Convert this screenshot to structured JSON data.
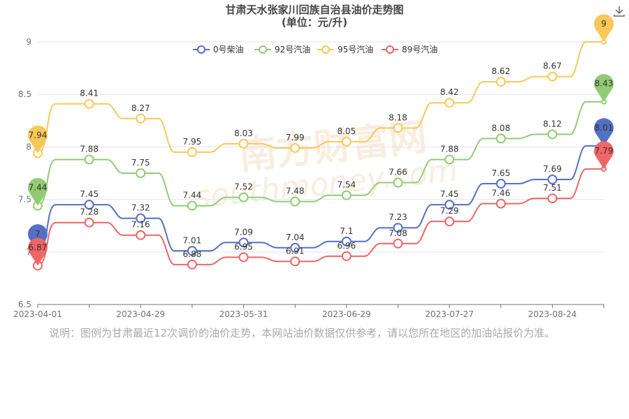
{
  "chart_data": {
    "type": "line",
    "title": "甘肃天水张家川回族自治县油价走势图",
    "subtitle": "(单位：元/升)",
    "x": [
      "2023-04-01",
      "2023-04-15",
      "2023-04-29",
      "2023-05-13",
      "2023-05-31",
      "2023-06-14",
      "2023-06-29",
      "2023-07-13",
      "2023-07-27",
      "2023-08-10",
      "2023-08-24",
      "2023-09-07"
    ],
    "x_tick_labels": [
      "2023-04-01",
      "2023-04-29",
      "2023-05-31",
      "2023-06-29",
      "2023-07-27",
      "2023-08-24"
    ],
    "y_ticks": [
      "6.5",
      "7",
      "7.5",
      "8",
      "8.5",
      "9"
    ],
    "ylim": [
      6.5,
      9
    ],
    "grid": true,
    "legend_position": "top",
    "series": [
      {
        "name": "0号柴油",
        "color": "#5470c6",
        "values": [
          7,
          7.45,
          7.32,
          7.01,
          7.09,
          7.04,
          7.1,
          7.23,
          7.45,
          7.65,
          7.69,
          8.01
        ],
        "labels": [
          "7",
          "7.45",
          "7.32",
          "7.01",
          "7.09",
          "7.04",
          "7.1",
          "7.23",
          "7.45",
          "7.65",
          "7.69",
          "8.01"
        ]
      },
      {
        "name": "92号汽油",
        "color": "#91cc75",
        "values": [
          7.44,
          7.88,
          7.75,
          7.44,
          7.52,
          7.48,
          7.54,
          7.66,
          7.88,
          8.08,
          8.12,
          8.43
        ],
        "labels": [
          "7.44",
          "7.88",
          "7.75",
          "7.44",
          "7.52",
          "7.48",
          "7.54",
          "7.66",
          "7.88",
          "8.08",
          "8.12",
          "8.43"
        ]
      },
      {
        "name": "95号汽油",
        "color": "#fac858",
        "values": [
          7.94,
          8.41,
          8.27,
          7.95,
          8.03,
          7.99,
          8.05,
          8.18,
          8.42,
          8.62,
          8.67,
          9
        ],
        "labels": [
          "7.94",
          "8.41",
          "8.27",
          "7.95",
          "8.03",
          "7.99",
          "8.05",
          "8.18",
          "8.42",
          "8.62",
          "8.67",
          "9"
        ]
      },
      {
        "name": "89号汽油",
        "color": "#ee6666",
        "values": [
          6.87,
          7.28,
          7.16,
          6.88,
          6.95,
          6.91,
          6.96,
          7.08,
          7.29,
          7.46,
          7.51,
          7.79
        ],
        "labels": [
          "6.87",
          "7.28",
          "7.16",
          "6.88",
          "6.95",
          "6.91",
          "6.96",
          "7.08",
          "7.29",
          "7.46",
          "7.51",
          "7.79"
        ]
      }
    ]
  },
  "note": "说明：图例为甘肃最近12次调价的油价走势，本网站油价数据仅供参考，请以您所在地区的加油站报价为准。",
  "watermark": {
    "line1": "南方财富网",
    "line2": "southmoney.com"
  },
  "icons": {
    "download": "download-icon"
  }
}
